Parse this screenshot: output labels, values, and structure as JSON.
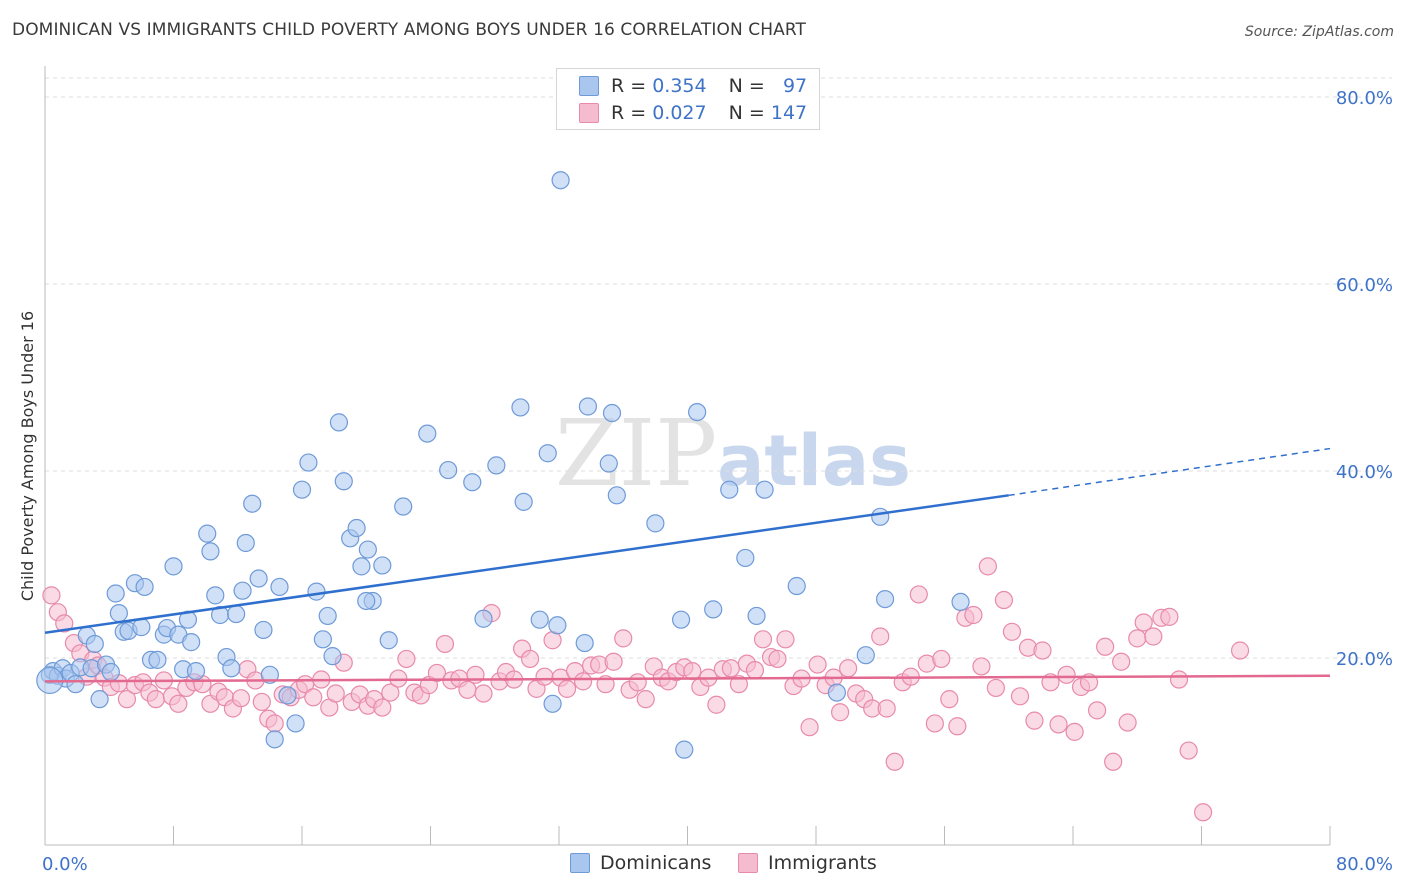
{
  "title": "DOMINICAN VS IMMIGRANTS CHILD POVERTY AMONG BOYS UNDER 16 CORRELATION CHART",
  "source": "Source: ZipAtlas.com",
  "watermark": {
    "part1": "ZIP",
    "part2": "atlas"
  },
  "colors": {
    "blue_fill": "#a9c6ee",
    "blue_stroke": "#6f9ad8",
    "blue_line": "#2f6fce",
    "pink_fill": "#f5bcd0",
    "pink_stroke": "#e88aab",
    "pink_line": "#e2698f",
    "axis_label": "#3f73c8",
    "grid": "#dcdcdc"
  },
  "legend_top": {
    "rows": [
      {
        "r_label": "R =",
        "r_value": "0.354",
        "n_label": "N =",
        "n_value": "97"
      },
      {
        "r_label": "R =",
        "r_value": "0.027",
        "n_label": "N =",
        "n_value": "147"
      }
    ]
  },
  "legend_bottom": {
    "items": [
      "Dominicans",
      "Immigrants"
    ]
  },
  "chart_data": {
    "type": "scatter",
    "title": "DOMINICAN VS IMMIGRANTS CHILD POVERTY AMONG BOYS UNDER 16 CORRELATION CHART",
    "xlabel": "",
    "ylabel": "Child Poverty Among Boys Under 16",
    "xlim": [
      0,
      80
    ],
    "ylim": [
      0,
      80
    ],
    "x_tick_labels": [
      "0.0%",
      "80.0%"
    ],
    "y_tick_labels": [
      "20.0%",
      "40.0%",
      "60.0%",
      "80.0%"
    ],
    "y_ticks": [
      20,
      40,
      60,
      80
    ],
    "grid": true,
    "legend_position": "bottom",
    "series": [
      {
        "name": "Dominicans",
        "R": 0.354,
        "N": 97,
        "trend": {
          "x_start": 0,
          "y_start": 22.7,
          "x_solid_end": 60,
          "y_solid_end": 37.4,
          "x_dash_end": 80,
          "y_dash_end": 42.4
        },
        "points": [
          [
            0.3,
            18.2
          ],
          [
            0.5,
            18.6
          ],
          [
            0.8,
            18.1
          ],
          [
            1.1,
            18.9
          ],
          [
            1.3,
            17.8
          ],
          [
            1.6,
            18.4
          ],
          [
            1.9,
            17.2
          ],
          [
            2.2,
            19.0
          ],
          [
            2.6,
            22.4
          ],
          [
            2.9,
            18.9
          ],
          [
            3.1,
            21.5
          ],
          [
            3.4,
            15.6
          ],
          [
            3.8,
            19.3
          ],
          [
            4.1,
            18.5
          ],
          [
            4.4,
            26.9
          ],
          [
            4.6,
            24.8
          ],
          [
            4.9,
            22.8
          ],
          [
            5.2,
            22.9
          ],
          [
            5.6,
            28.0
          ],
          [
            6.0,
            23.3
          ],
          [
            6.2,
            27.6
          ],
          [
            6.6,
            19.8
          ],
          [
            7.0,
            19.8
          ],
          [
            7.4,
            22.5
          ],
          [
            7.6,
            23.2
          ],
          [
            8.0,
            29.8
          ],
          [
            8.3,
            22.5
          ],
          [
            8.6,
            18.8
          ],
          [
            8.9,
            24.1
          ],
          [
            9.1,
            21.7
          ],
          [
            9.4,
            18.6
          ],
          [
            10.1,
            33.3
          ],
          [
            10.3,
            31.4
          ],
          [
            10.6,
            26.7
          ],
          [
            10.9,
            24.6
          ],
          [
            11.3,
            20.1
          ],
          [
            11.6,
            18.9
          ],
          [
            11.9,
            24.7
          ],
          [
            12.3,
            27.2
          ],
          [
            12.5,
            32.3
          ],
          [
            12.9,
            36.5
          ],
          [
            13.3,
            28.5
          ],
          [
            13.6,
            23.0
          ],
          [
            14.0,
            18.2
          ],
          [
            14.3,
            11.3
          ],
          [
            14.6,
            27.6
          ],
          [
            15.1,
            16.0
          ],
          [
            15.6,
            13.0
          ],
          [
            16.0,
            38.0
          ],
          [
            16.4,
            40.9
          ],
          [
            16.9,
            27.1
          ],
          [
            17.3,
            22.0
          ],
          [
            17.6,
            24.5
          ],
          [
            17.9,
            20.2
          ],
          [
            18.3,
            45.2
          ],
          [
            18.6,
            38.9
          ],
          [
            19.0,
            32.8
          ],
          [
            19.4,
            33.9
          ],
          [
            19.7,
            29.8
          ],
          [
            20.1,
            31.6
          ],
          [
            20.4,
            26.1
          ],
          [
            21.0,
            29.9
          ],
          [
            21.4,
            21.9
          ],
          [
            22.3,
            36.2
          ],
          [
            23.8,
            44.0
          ],
          [
            25.1,
            40.1
          ],
          [
            26.6,
            38.8
          ],
          [
            27.3,
            24.2
          ],
          [
            28.1,
            40.6
          ],
          [
            29.6,
            46.8
          ],
          [
            29.8,
            36.7
          ],
          [
            30.8,
            24.1
          ],
          [
            31.3,
            41.9
          ],
          [
            31.6,
            15.1
          ],
          [
            31.9,
            23.5
          ],
          [
            32.1,
            71.1
          ],
          [
            33.6,
            21.6
          ],
          [
            33.8,
            46.9
          ],
          [
            35.1,
            40.8
          ],
          [
            35.3,
            46.2
          ],
          [
            35.6,
            37.4
          ],
          [
            38.0,
            34.4
          ],
          [
            39.6,
            24.1
          ],
          [
            39.8,
            10.2
          ],
          [
            40.6,
            46.3
          ],
          [
            41.6,
            25.2
          ],
          [
            42.6,
            38.0
          ],
          [
            43.6,
            30.7
          ],
          [
            44.3,
            24.5
          ],
          [
            44.8,
            38.0
          ],
          [
            46.8,
            27.7
          ],
          [
            49.3,
            16.3
          ],
          [
            51.1,
            20.3
          ],
          [
            52.0,
            35.1
          ],
          [
            52.3,
            26.3
          ],
          [
            57.0,
            26.0
          ],
          [
            20.0,
            26.1
          ]
        ]
      },
      {
        "name": "Immigrants",
        "R": 0.027,
        "N": 147,
        "trend": {
          "x_start": 0,
          "y_start": 17.5,
          "x_end": 80,
          "y_end": 18.1
        },
        "points": [
          [
            0.4,
            26.7
          ],
          [
            0.8,
            24.9
          ],
          [
            1.2,
            23.7
          ],
          [
            1.8,
            21.6
          ],
          [
            2.2,
            20.5
          ],
          [
            2.6,
            18.0
          ],
          [
            3.0,
            19.8
          ],
          [
            3.3,
            19.2
          ],
          [
            3.7,
            17.9
          ],
          [
            4.1,
            16.9
          ],
          [
            4.6,
            17.3
          ],
          [
            5.1,
            15.6
          ],
          [
            5.6,
            17.1
          ],
          [
            6.1,
            17.4
          ],
          [
            6.5,
            16.3
          ],
          [
            6.9,
            15.6
          ],
          [
            7.4,
            17.6
          ],
          [
            7.9,
            15.9
          ],
          [
            8.3,
            15.1
          ],
          [
            8.8,
            16.8
          ],
          [
            9.3,
            17.4
          ],
          [
            9.8,
            17.2
          ],
          [
            10.3,
            15.1
          ],
          [
            10.8,
            16.4
          ],
          [
            11.2,
            15.8
          ],
          [
            11.7,
            14.6
          ],
          [
            12.2,
            15.7
          ],
          [
            12.6,
            18.8
          ],
          [
            13.1,
            17.6
          ],
          [
            13.5,
            15.3
          ],
          [
            13.9,
            13.5
          ],
          [
            14.3,
            13.0
          ],
          [
            14.8,
            16.1
          ],
          [
            15.3,
            15.8
          ],
          [
            15.8,
            16.6
          ],
          [
            16.2,
            17.2
          ],
          [
            16.7,
            15.8
          ],
          [
            17.2,
            17.7
          ],
          [
            17.7,
            14.7
          ],
          [
            18.1,
            16.2
          ],
          [
            18.6,
            19.5
          ],
          [
            19.1,
            15.3
          ],
          [
            19.6,
            16.1
          ],
          [
            20.1,
            14.9
          ],
          [
            20.5,
            15.6
          ],
          [
            21.0,
            14.7
          ],
          [
            21.5,
            16.3
          ],
          [
            22.0,
            17.8
          ],
          [
            22.5,
            19.9
          ],
          [
            23.0,
            16.3
          ],
          [
            23.4,
            16.0
          ],
          [
            23.9,
            17.1
          ],
          [
            24.4,
            18.4
          ],
          [
            24.9,
            21.5
          ],
          [
            25.3,
            17.6
          ],
          [
            25.8,
            17.8
          ],
          [
            26.3,
            16.6
          ],
          [
            26.8,
            18.2
          ],
          [
            27.3,
            16.2
          ],
          [
            27.8,
            24.8
          ],
          [
            28.3,
            17.5
          ],
          [
            28.7,
            18.5
          ],
          [
            29.2,
            17.7
          ],
          [
            29.7,
            21.0
          ],
          [
            30.2,
            19.9
          ],
          [
            30.6,
            16.7
          ],
          [
            31.1,
            18.0
          ],
          [
            31.6,
            21.9
          ],
          [
            32.1,
            17.9
          ],
          [
            32.5,
            16.7
          ],
          [
            33.0,
            18.6
          ],
          [
            33.5,
            17.5
          ],
          [
            34.0,
            19.2
          ],
          [
            34.5,
            19.3
          ],
          [
            34.9,
            17.2
          ],
          [
            35.4,
            19.6
          ],
          [
            36.0,
            22.1
          ],
          [
            36.4,
            16.6
          ],
          [
            36.9,
            17.4
          ],
          [
            37.4,
            15.6
          ],
          [
            37.9,
            19.1
          ],
          [
            38.4,
            17.9
          ],
          [
            38.8,
            17.5
          ],
          [
            39.3,
            18.5
          ],
          [
            39.8,
            19.0
          ],
          [
            40.3,
            18.6
          ],
          [
            40.8,
            16.9
          ],
          [
            41.3,
            17.9
          ],
          [
            41.8,
            15.0
          ],
          [
            42.2,
            18.8
          ],
          [
            42.7,
            18.9
          ],
          [
            43.2,
            17.2
          ],
          [
            43.7,
            19.4
          ],
          [
            44.2,
            18.7
          ],
          [
            44.7,
            22.0
          ],
          [
            45.2,
            20.1
          ],
          [
            45.6,
            19.9
          ],
          [
            46.1,
            22.0
          ],
          [
            46.6,
            17.0
          ],
          [
            47.1,
            17.8
          ],
          [
            47.6,
            12.6
          ],
          [
            48.1,
            19.3
          ],
          [
            48.6,
            17.1
          ],
          [
            49.1,
            17.9
          ],
          [
            49.5,
            14.2
          ],
          [
            50.0,
            18.9
          ],
          [
            50.5,
            16.2
          ],
          [
            51.0,
            15.6
          ],
          [
            51.5,
            14.6
          ],
          [
            52.0,
            22.3
          ],
          [
            52.4,
            14.6
          ],
          [
            52.9,
            8.9
          ],
          [
            53.4,
            17.4
          ],
          [
            53.9,
            18.0
          ],
          [
            54.4,
            26.8
          ],
          [
            54.9,
            19.4
          ],
          [
            55.4,
            13.0
          ],
          [
            55.8,
            19.9
          ],
          [
            56.3,
            15.6
          ],
          [
            56.8,
            12.7
          ],
          [
            57.3,
            24.3
          ],
          [
            57.8,
            24.6
          ],
          [
            58.3,
            19.1
          ],
          [
            58.7,
            29.8
          ],
          [
            59.2,
            16.8
          ],
          [
            59.7,
            26.2
          ],
          [
            60.2,
            22.8
          ],
          [
            60.7,
            15.9
          ],
          [
            61.2,
            21.1
          ],
          [
            61.6,
            13.3
          ],
          [
            62.1,
            20.8
          ],
          [
            62.6,
            17.4
          ],
          [
            63.1,
            12.9
          ],
          [
            63.6,
            18.2
          ],
          [
            64.1,
            12.1
          ],
          [
            64.5,
            16.9
          ],
          [
            65.0,
            17.4
          ],
          [
            65.5,
            14.4
          ],
          [
            66.0,
            21.2
          ],
          [
            66.5,
            8.9
          ],
          [
            67.0,
            19.6
          ],
          [
            67.4,
            13.1
          ],
          [
            68.0,
            22.1
          ],
          [
            68.4,
            23.8
          ],
          [
            69.0,
            22.3
          ],
          [
            69.5,
            24.3
          ],
          [
            70.0,
            24.4
          ],
          [
            70.6,
            17.7
          ],
          [
            71.2,
            10.1
          ],
          [
            72.1,
            3.5
          ],
          [
            74.4,
            20.8
          ]
        ]
      }
    ]
  }
}
